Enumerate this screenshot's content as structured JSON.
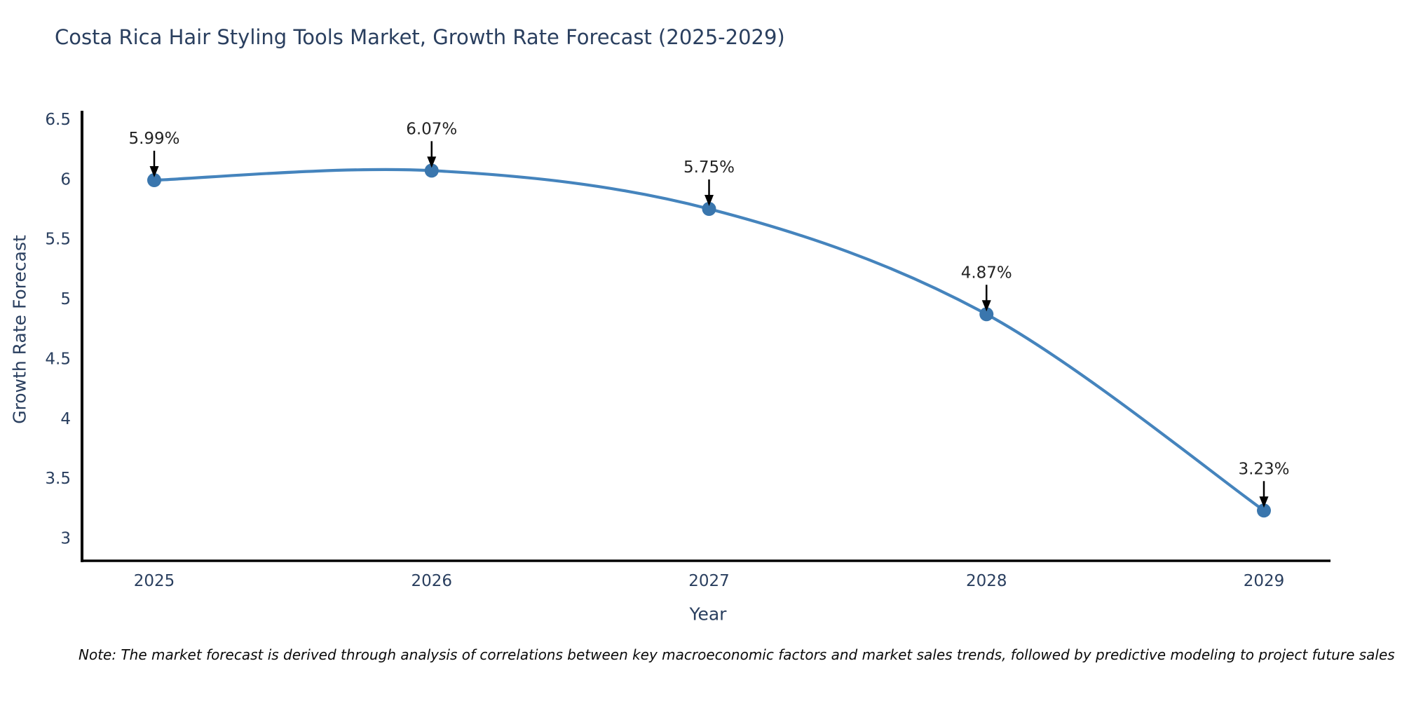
{
  "chart_data": {
    "type": "line",
    "title": "Costa Rica Hair Styling Tools Market, Growth Rate Forecast (2025-2029)",
    "xlabel": "Year",
    "ylabel": "Growth Rate Forecast",
    "categories": [
      "2025",
      "2026",
      "2027",
      "2028",
      "2029"
    ],
    "values": [
      5.99,
      6.07,
      5.75,
      4.87,
      3.23
    ],
    "point_labels": [
      "5.99%",
      "6.07%",
      "5.75%",
      "4.87%",
      "3.23%"
    ],
    "yticks": [
      6.5,
      6,
      5.5,
      5,
      4.5,
      4,
      3.5,
      3
    ],
    "ytick_labels": [
      "6.5",
      "6",
      "5.5",
      "5",
      "4.5",
      "4",
      "3.5",
      "3"
    ],
    "ylim": [
      2.81,
      6.57
    ],
    "grid": false,
    "legend": "none",
    "line_shape": "spline",
    "markers": true,
    "annotation_arrows": true,
    "colors": {
      "line": "#4584bd",
      "marker": "#3a76ad",
      "axis": "#000000",
      "tick_text": "#2a3f5f",
      "annotation_text": "#242424",
      "arrow": "#000000",
      "background": "#ffffff"
    }
  },
  "footnote": "Note: The market forecast is derived through analysis of correlations between key macroeconomic factors and market sales trends, followed by predictive modeling to project future sales"
}
